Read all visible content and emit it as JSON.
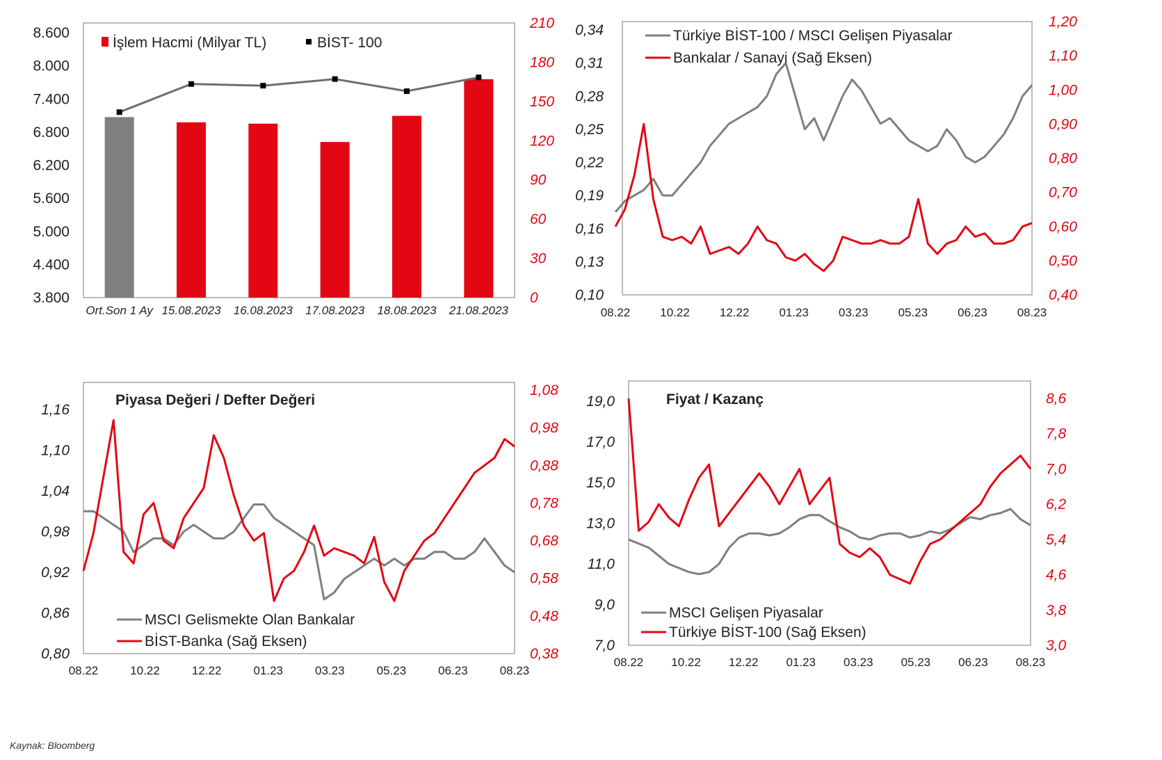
{
  "source": "Kaynak: Bloomberg",
  "colors": {
    "red": "#e30613",
    "gray": "#7f7f7f",
    "line_gray": "#6e6e6e",
    "black": "#000000"
  },
  "chart_data": [
    {
      "id": "c1",
      "type": "bar",
      "categories": [
        "Ort.Son 1 Ay",
        "15.08.2023",
        "16.08.2023",
        "17.08.2023",
        "18.08.2023",
        "21.08.2023"
      ],
      "series": [
        {
          "name": "İşlem Hacmi (Milyar TL)",
          "axis": "right",
          "values": [
            138,
            134,
            133,
            119,
            139,
            167
          ]
        },
        {
          "name": "BİST- 100",
          "axis": "left",
          "type": "line",
          "values": [
            7160,
            7670,
            7640,
            7760,
            7540,
            7790
          ]
        }
      ],
      "y_left_ticks": [
        "3.800",
        "4.400",
        "5.000",
        "5.600",
        "6.200",
        "6.800",
        "7.400",
        "8.000",
        "8.600"
      ],
      "y_left_lim": [
        3800,
        8800
      ],
      "y_right_ticks": [
        "0",
        "30",
        "60",
        "90",
        "120",
        "150",
        "180",
        "210"
      ],
      "y_right_lim": [
        0,
        210
      ]
    },
    {
      "id": "c2",
      "type": "line",
      "x_ticks": [
        "08.22",
        "10.22",
        "12.22",
        "01.23",
        "03.23",
        "05.23",
        "06.23",
        "08.23"
      ],
      "y_left_ticks": [
        "0,10",
        "0,13",
        "0,16",
        "0,19",
        "0,22",
        "0,25",
        "0,28",
        "0,31",
        "0,34"
      ],
      "y_left_lim": [
        0.1,
        0.34
      ],
      "y_right_ticks": [
        "0,40",
        "0,50",
        "0,60",
        "0,70",
        "0,80",
        "0,90",
        "1,00",
        "1,10",
        "1,20"
      ],
      "y_right_lim": [
        0.4,
        1.2
      ],
      "series": [
        {
          "name": "Türkiye BİST-100 / MSCI Gelişen Piyasalar",
          "axis": "left",
          "values": [
            0.175,
            0.185,
            0.19,
            0.195,
            0.205,
            0.19,
            0.19,
            0.2,
            0.21,
            0.22,
            0.235,
            0.245,
            0.255,
            0.26,
            0.265,
            0.27,
            0.28,
            0.3,
            0.31,
            0.28,
            0.25,
            0.26,
            0.24,
            0.26,
            0.28,
            0.295,
            0.285,
            0.27,
            0.255,
            0.26,
            0.25,
            0.24,
            0.235,
            0.23,
            0.235,
            0.25,
            0.24,
            0.225,
            0.22,
            0.225,
            0.235,
            0.245,
            0.26,
            0.28,
            0.29
          ]
        },
        {
          "name": "Bankalar / Sanayi (Sağ Eksen)",
          "axis": "right",
          "values": [
            0.6,
            0.65,
            0.75,
            0.9,
            0.68,
            0.57,
            0.56,
            0.57,
            0.55,
            0.6,
            0.52,
            0.53,
            0.54,
            0.52,
            0.55,
            0.6,
            0.56,
            0.55,
            0.51,
            0.5,
            0.52,
            0.49,
            0.47,
            0.5,
            0.57,
            0.56,
            0.55,
            0.55,
            0.56,
            0.55,
            0.55,
            0.57,
            0.68,
            0.55,
            0.52,
            0.55,
            0.56,
            0.6,
            0.57,
            0.58,
            0.55,
            0.55,
            0.56,
            0.6,
            0.61
          ]
        }
      ]
    },
    {
      "id": "c3",
      "type": "line",
      "title": "Piyasa Değeri / Defter Değeri",
      "x_ticks": [
        "08.22",
        "10.22",
        "12.22",
        "01.23",
        "03.23",
        "05.23",
        "06.23",
        "08.23"
      ],
      "y_left_ticks": [
        "0,80",
        "0,86",
        "0,92",
        "0,98",
        "1,04",
        "1,10",
        "1,16"
      ],
      "y_left_lim": [
        0.8,
        1.19
      ],
      "y_right_ticks": [
        "0,38",
        "0,48",
        "0,58",
        "0,68",
        "0,78",
        "0,88",
        "0,98",
        "1,08"
      ],
      "y_right_lim": [
        0.38,
        1.08
      ],
      "series": [
        {
          "name": "MSCI Gelismekte Olan Bankalar",
          "axis": "left",
          "values": [
            1.01,
            1.01,
            1.0,
            0.99,
            0.98,
            0.95,
            0.96,
            0.97,
            0.97,
            0.96,
            0.98,
            0.99,
            0.98,
            0.97,
            0.97,
            0.98,
            1.0,
            1.02,
            1.02,
            1.0,
            0.99,
            0.98,
            0.97,
            0.96,
            0.88,
            0.89,
            0.91,
            0.92,
            0.93,
            0.94,
            0.93,
            0.94,
            0.93,
            0.94,
            0.94,
            0.95,
            0.95,
            0.94,
            0.94,
            0.95,
            0.97,
            0.95,
            0.93,
            0.92
          ]
        },
        {
          "name": "BİST-Banka (Sağ Eksen)",
          "axis": "right",
          "values": [
            0.6,
            0.7,
            0.85,
            1.0,
            0.65,
            0.62,
            0.75,
            0.78,
            0.68,
            0.66,
            0.74,
            0.78,
            0.82,
            0.96,
            0.9,
            0.8,
            0.72,
            0.68,
            0.7,
            0.52,
            0.58,
            0.6,
            0.65,
            0.72,
            0.64,
            0.66,
            0.65,
            0.64,
            0.62,
            0.69,
            0.57,
            0.52,
            0.6,
            0.64,
            0.68,
            0.7,
            0.74,
            0.78,
            0.82,
            0.86,
            0.88,
            0.9,
            0.95,
            0.93
          ]
        }
      ]
    },
    {
      "id": "c4",
      "type": "line",
      "title": "Fiyat / Kazanç",
      "x_ticks": [
        "08.22",
        "10.22",
        "12.22",
        "01.23",
        "03.23",
        "05.23",
        "06.23",
        "08.23"
      ],
      "y_left_ticks": [
        "7,0",
        "9,0",
        "11,0",
        "13,0",
        "15,0",
        "17,0",
        "19,0"
      ],
      "y_left_lim": [
        7.0,
        20.0
      ],
      "y_right_ticks": [
        "3,0",
        "3,8",
        "4,6",
        "5,4",
        "6,2",
        "7,0",
        "7,8",
        "8,6"
      ],
      "y_right_lim": [
        3.0,
        8.8
      ],
      "series": [
        {
          "name": "MSCI Gelişen Piyasalar",
          "axis": "left",
          "values": [
            12.2,
            12.0,
            11.8,
            11.4,
            11.0,
            10.8,
            10.6,
            10.5,
            10.6,
            11.0,
            11.8,
            12.3,
            12.5,
            12.5,
            12.4,
            12.5,
            12.8,
            13.2,
            13.4,
            13.4,
            13.1,
            12.8,
            12.6,
            12.3,
            12.2,
            12.4,
            12.5,
            12.5,
            12.3,
            12.4,
            12.6,
            12.5,
            12.7,
            13.0,
            13.3,
            13.2,
            13.4,
            13.5,
            13.7,
            13.2,
            12.9
          ]
        },
        {
          "name": "Türkiye BİST-100 (Sağ Eksen)",
          "axis": "right",
          "values": [
            8.6,
            5.6,
            5.8,
            6.2,
            5.9,
            5.7,
            6.3,
            6.8,
            7.1,
            5.7,
            6.0,
            6.3,
            6.6,
            6.9,
            6.6,
            6.2,
            6.6,
            7.0,
            6.2,
            6.5,
            6.8,
            5.3,
            5.1,
            5.0,
            5.2,
            5.0,
            4.6,
            4.5,
            4.4,
            4.9,
            5.3,
            5.4,
            5.6,
            5.8,
            6.0,
            6.2,
            6.6,
            6.9,
            7.1,
            7.3,
            7.0
          ]
        }
      ]
    }
  ]
}
